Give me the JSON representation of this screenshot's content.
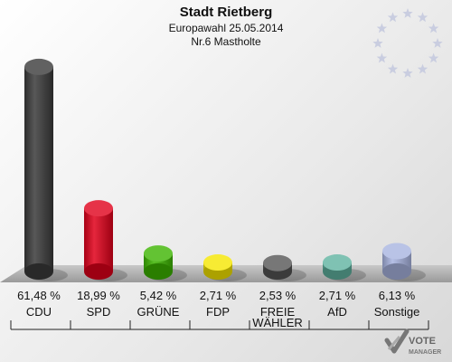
{
  "header": {
    "title": "Stadt Rietberg",
    "subtitle": "Europawahl 25.05.2014",
    "district": "Nr.6 Mastholte"
  },
  "chart_data": {
    "type": "bar",
    "title": "Stadt Rietberg",
    "categories": [
      "CDU",
      "SPD",
      "GRÜNE",
      "FDP",
      "FREIE WÄHLER",
      "AfD",
      "Sonstige"
    ],
    "category_lines": [
      [
        "CDU"
      ],
      [
        "SPD"
      ],
      [
        "GRÜNE"
      ],
      [
        "FDP"
      ],
      [
        "FREIE",
        "WÄHLER"
      ],
      [
        "AfD"
      ],
      [
        "Sonstige"
      ]
    ],
    "values": [
      61.48,
      18.99,
      5.42,
      2.71,
      2.53,
      2.71,
      6.13
    ],
    "labels": [
      "61,48 %",
      "18,99 %",
      "5,42 %",
      "2,71 %",
      "2,53 %",
      "2,71 %",
      "6,13 %"
    ],
    "colors": [
      "#3a3a3a",
      "#e0001a",
      "#3cb400",
      "#f5e600",
      "#555555",
      "#5fb3a0",
      "#a8b4e0"
    ],
    "ylim": [
      0,
      62
    ],
    "grid": false
  },
  "logo": {
    "line1": "VOTE",
    "line2": "MANAGER"
  },
  "icons": {
    "eu_stars": "eu-stars-icon",
    "logo_mark": "vote-check-icon"
  }
}
